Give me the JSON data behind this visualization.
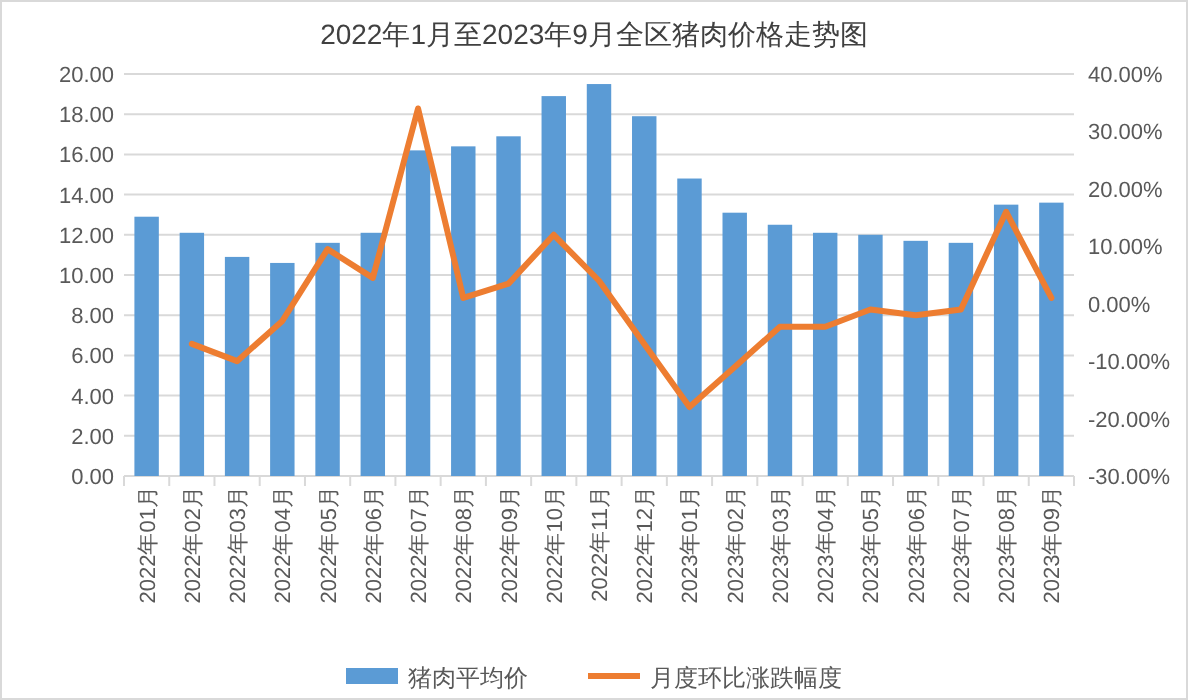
{
  "chart_data": {
    "type": "bar",
    "title": "2022年1月至2023年9月全区猪肉价格走势图",
    "categories": [
      "2022年01月",
      "2022年02月",
      "2022年03月",
      "2022年04月",
      "2022年05月",
      "2022年06月",
      "2022年07月",
      "2022年08月",
      "2022年09月",
      "2022年10月",
      "2022年11月",
      "2022年12月",
      "2023年01月",
      "2023年02月",
      "2023年03月",
      "2023年04月",
      "2023年05月",
      "2023年06月",
      "2023年07月",
      "2023年08月",
      "2023年09月"
    ],
    "series": [
      {
        "name": "猪肉平均价",
        "color": "#5b9bd5",
        "values": [
          12.9,
          12.1,
          10.9,
          10.6,
          11.6,
          12.1,
          16.2,
          16.4,
          16.9,
          18.9,
          19.5,
          17.9,
          14.8,
          13.1,
          12.5,
          12.1,
          12.0,
          11.7,
          11.6,
          13.5,
          13.6
        ]
      },
      {
        "name": "月度环比涨跌幅度",
        "type": "line",
        "axis": "y2",
        "color": "#ed7d31",
        "values": [
          null,
          -7,
          -10,
          -3,
          9.5,
          4.5,
          34,
          1,
          3.5,
          12,
          4,
          -7,
          -18,
          -11,
          -4,
          -4,
          -1,
          -2,
          -1,
          16,
          1
        ]
      }
    ],
    "ylim": [
      0,
      20
    ],
    "yticks": [
      {
        "value": 0,
        "label": "0.00"
      },
      {
        "value": 2,
        "label": "2.00"
      },
      {
        "value": 4,
        "label": "4.00"
      },
      {
        "value": 6,
        "label": "6.00"
      },
      {
        "value": 8,
        "label": "8.00"
      },
      {
        "value": 10,
        "label": "10.00"
      },
      {
        "value": 12,
        "label": "12.00"
      },
      {
        "value": 14,
        "label": "14.00"
      },
      {
        "value": 16,
        "label": "16.00"
      },
      {
        "value": 18,
        "label": "18.00"
      },
      {
        "value": 20,
        "label": "20.00"
      }
    ],
    "y2lim": [
      -30,
      40
    ],
    "y2ticks": [
      {
        "value": -30,
        "label": "-30.00%"
      },
      {
        "value": -20,
        "label": "-20.00%"
      },
      {
        "value": -10,
        "label": "-10.00%"
      },
      {
        "value": 0,
        "label": "0.00%"
      },
      {
        "value": 10,
        "label": "10.00%"
      },
      {
        "value": 20,
        "label": "20.00%"
      },
      {
        "value": 30,
        "label": "30.00%"
      },
      {
        "value": 40,
        "label": "40.00%"
      }
    ],
    "grid": "y",
    "legend": "bottom",
    "marker": "none"
  }
}
